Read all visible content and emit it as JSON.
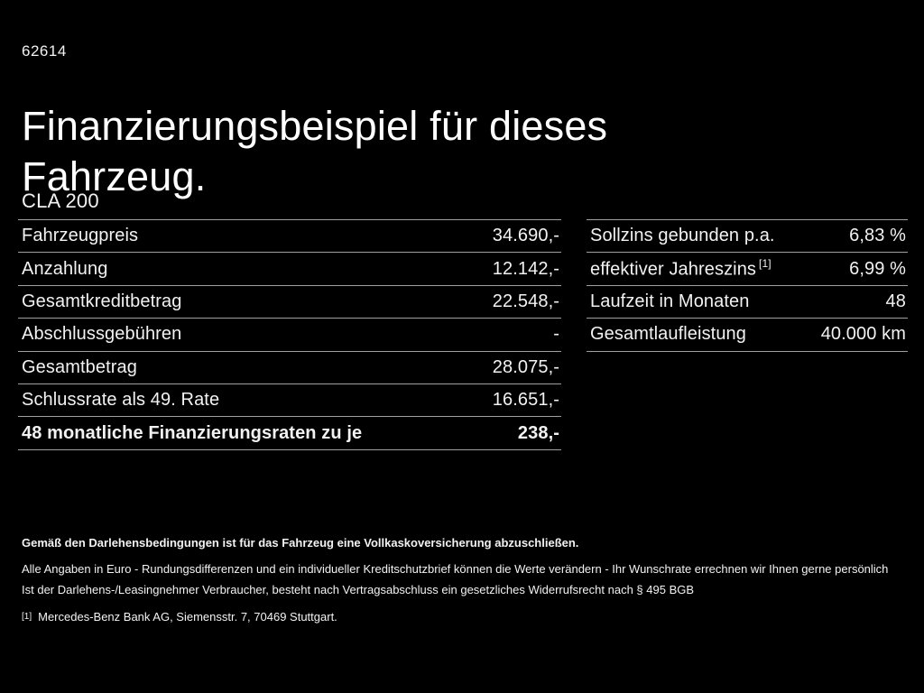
{
  "page": {
    "doc_number": "62614",
    "title": "Finanzierungsbeispiel für dieses Fahrzeug.",
    "model": "CLA 200"
  },
  "left_table": {
    "rows": [
      {
        "label": "Fahrzeugpreis",
        "value": "34.690,-"
      },
      {
        "label": "Anzahlung",
        "value": "12.142,-"
      },
      {
        "label": "Gesamtkreditbetrag",
        "value": "22.548,-"
      },
      {
        "label": "Abschlussgebühren",
        "value": "-"
      },
      {
        "label": "Gesamtbetrag",
        "value": "28.075,-"
      },
      {
        "label": "Schlussrate als 49. Rate",
        "value": "16.651,-"
      },
      {
        "label": "48 monatliche Finanzierungsraten zu je",
        "value": "238,-",
        "bold": true
      }
    ]
  },
  "right_table": {
    "rows": [
      {
        "label": "Sollzins gebunden p.a.",
        "value": "6,83 %"
      },
      {
        "label": "effektiver Jahreszins",
        "sup": "[1]",
        "value": "6,99 %"
      },
      {
        "label": "Laufzeit in Monaten",
        "value": "48"
      },
      {
        "label": "Gesamtlaufleistung",
        "value": "40.000 km"
      }
    ]
  },
  "legal": {
    "bold_line": "Gemäß den Darlehensbedingungen ist für das Fahrzeug eine Vollkaskoversicherung abzuschließen.",
    "lines": [
      "Alle Angaben in Euro - Rundungsdifferenzen und ein individueller Kreditschutzbrief können die Werte verändern - Ihr Wunschrate errechnen wir Ihnen gerne persönlich",
      "Ist der Darlehens-/Leasingnehmer Verbraucher, besteht nach Vertragsabschluss ein gesetzliches Widerrufsrecht nach § 495 BGB"
    ],
    "footnote": {
      "marker": "[1]",
      "text": "Mercedes-Benz Bank AG, Siemensstr. 7, 70469 Stuttgart."
    }
  },
  "colors": {
    "background": "#000000",
    "text": "#f2f2f2",
    "heading": "#ffffff",
    "rule": "#a0a0a0"
  }
}
